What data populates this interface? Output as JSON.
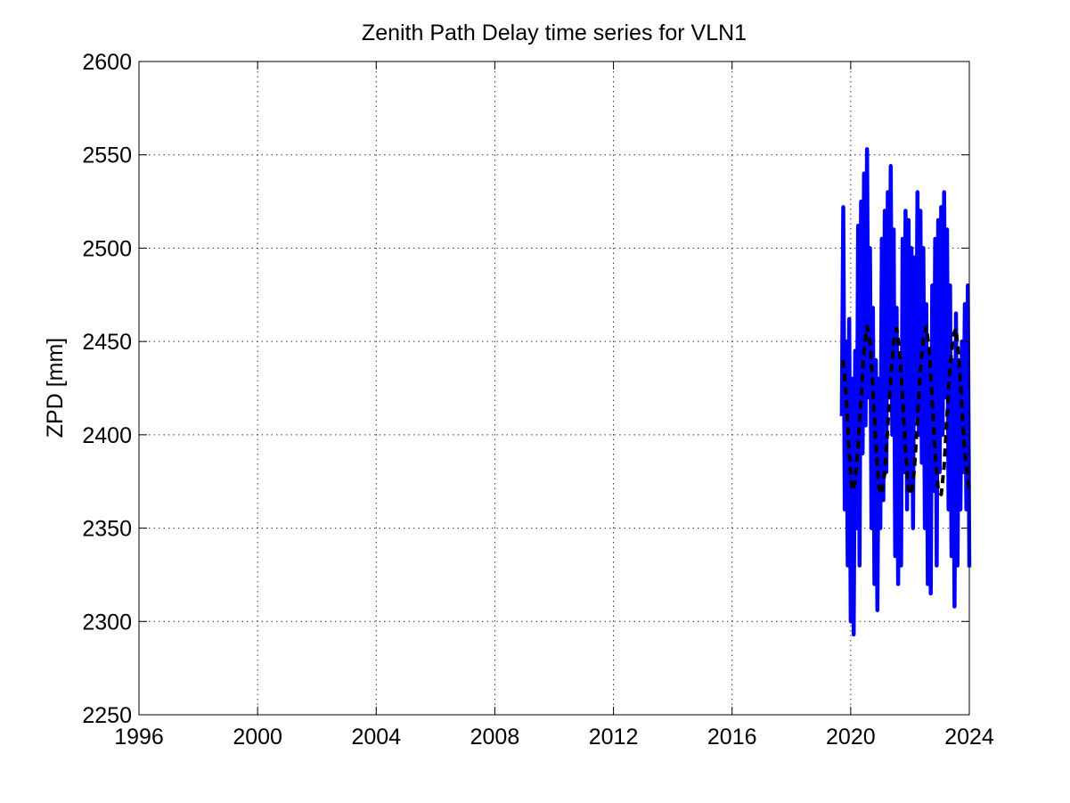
{
  "chart_data": {
    "type": "line",
    "title": "Zenith Path Delay time series for VLN1",
    "xlabel": "",
    "ylabel": "ZPD [mm]",
    "xlim": [
      1996,
      2024
    ],
    "ylim": [
      2250,
      2600
    ],
    "xticks": [
      "1996",
      "2000",
      "2004",
      "2008",
      "2012",
      "2016",
      "2020",
      "2024"
    ],
    "yticks": [
      "2250",
      "2300",
      "2350",
      "2400",
      "2450",
      "2500",
      "2550",
      "2600"
    ],
    "grid": true,
    "series": [
      {
        "style": "solid",
        "color": "#0000ff",
        "x": [
          2019.7,
          2019.75,
          2019.8,
          2019.85,
          2019.9,
          2019.95,
          2020.0,
          2020.05,
          2020.1,
          2020.15,
          2020.2,
          2020.25,
          2020.3,
          2020.35,
          2020.4,
          2020.45,
          2020.5,
          2020.55,
          2020.6,
          2020.65,
          2020.7,
          2020.75,
          2020.8,
          2020.85,
          2020.9,
          2020.95,
          2021.0,
          2021.05,
          2021.1,
          2021.15,
          2021.2,
          2021.25,
          2021.3,
          2021.35,
          2021.4,
          2021.45,
          2021.5,
          2021.55,
          2021.6,
          2021.65,
          2021.7,
          2021.75,
          2021.8,
          2021.85,
          2021.9,
          2021.95,
          2022.0,
          2022.05,
          2022.1,
          2022.15,
          2022.2,
          2022.25,
          2022.3,
          2022.35,
          2022.4,
          2022.45,
          2022.5,
          2022.55,
          2022.6,
          2022.65,
          2022.7,
          2022.75,
          2022.8,
          2022.85,
          2022.9,
          2022.95,
          2023.0,
          2023.05,
          2023.1,
          2023.15,
          2023.2,
          2023.25,
          2023.3,
          2023.35,
          2023.4,
          2023.45,
          2023.5,
          2023.55,
          2023.6,
          2023.65,
          2023.7,
          2023.75,
          2023.8,
          2023.85,
          2023.9,
          2023.95,
          2024.0
        ],
        "y": [
          2410,
          2522,
          2360,
          2450,
          2330,
          2462,
          2300,
          2430,
          2293,
          2445,
          2350,
          2512,
          2330,
          2525,
          2390,
          2540,
          2405,
          2553,
          2420,
          2500,
          2350,
          2468,
          2320,
          2440,
          2306,
          2430,
          2350,
          2505,
          2365,
          2520,
          2380,
          2530,
          2420,
          2544,
          2400,
          2510,
          2335,
          2468,
          2320,
          2440,
          2330,
          2505,
          2380,
          2520,
          2360,
          2515,
          2370,
          2500,
          2350,
          2495,
          2410,
          2530,
          2400,
          2520,
          2385,
          2500,
          2350,
          2470,
          2320,
          2445,
          2315,
          2480,
          2370,
          2505,
          2330,
          2515,
          2380,
          2522,
          2400,
          2530,
          2420,
          2510,
          2360,
          2480,
          2335,
          2440,
          2308,
          2465,
          2330,
          2440,
          2360,
          2450,
          2380,
          2470,
          2360,
          2480,
          2329
        ]
      },
      {
        "style": "dashed",
        "color": "#000000",
        "x": [
          2019.75,
          2019.85,
          2019.95,
          2020.05,
          2020.15,
          2020.25,
          2020.35,
          2020.45,
          2020.55,
          2020.65,
          2020.75,
          2020.85,
          2020.95,
          2021.05,
          2021.15,
          2021.25,
          2021.35,
          2021.45,
          2021.55,
          2021.65,
          2021.75,
          2021.85,
          2021.95,
          2022.05,
          2022.15,
          2022.25,
          2022.35,
          2022.45,
          2022.55,
          2022.65,
          2022.75,
          2022.85,
          2022.95,
          2023.05,
          2023.15,
          2023.25,
          2023.35,
          2023.45,
          2023.55,
          2023.65,
          2023.75,
          2023.85,
          2023.95,
          2024.0
        ],
        "y": [
          2440,
          2420,
          2390,
          2370,
          2375,
          2395,
          2420,
          2445,
          2458,
          2450,
          2425,
          2395,
          2372,
          2368,
          2380,
          2405,
          2430,
          2450,
          2457,
          2445,
          2420,
          2392,
          2370,
          2368,
          2382,
          2408,
          2435,
          2452,
          2458,
          2445,
          2418,
          2390,
          2370,
          2368,
          2383,
          2410,
          2437,
          2453,
          2457,
          2440,
          2415,
          2390,
          2375,
          2370
        ]
      }
    ]
  }
}
